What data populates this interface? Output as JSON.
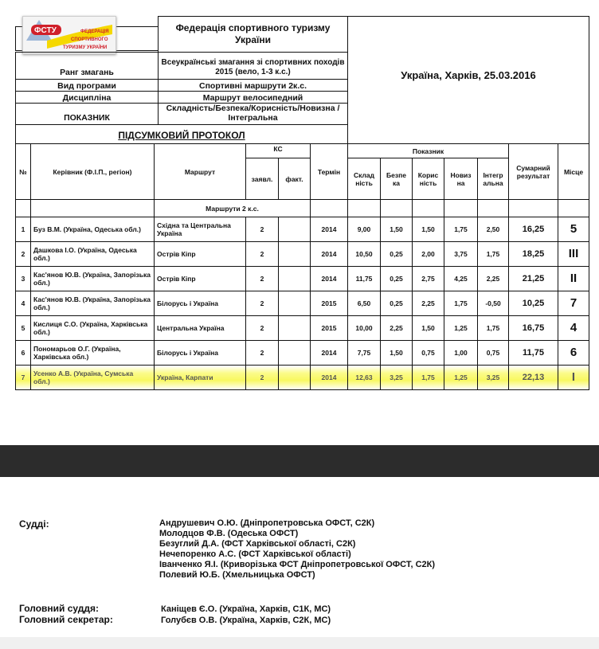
{
  "logo": {
    "abbr": "ФСТУ",
    "text": [
      "ФЕДЕРАЦІЯ",
      "СПОРТИВНОГО",
      "ТУРИЗМУ УКРАЇНИ"
    ],
    "colors": {
      "blue": "#1a4fa0",
      "yellow": "#f5d800",
      "red": "#d0202a"
    }
  },
  "header": {
    "federation": "Федерація спортивного туризму України",
    "location_date": "Україна, Харків, 25.03.2016",
    "rank_label": "Ранг змагань",
    "rank_value": "Всеукраїнські змагання зі спортивних походів 2015 (вело, 1-3 к.с.)",
    "program_label": "Вид програми",
    "program_value": "Спортивні маршрути 2к.с.",
    "discipline_label": "Дисципліна",
    "discipline_value": "Маршрут велосипедний",
    "indicator_label": "ПОКАЗНИК",
    "indicator_value": "Складність/Безпека/Корисність/Новизна /Інтегральна",
    "protocol_title": "ПІДСУМКОВИЙ ПРОТОКОЛ"
  },
  "table": {
    "headers": {
      "num": "№",
      "leader": "Керівник (Ф.І.П., регіон)",
      "route": "Маршрут",
      "ks": "КС",
      "ks_declared": "заявл.",
      "ks_actual": "факт.",
      "term": "Термін",
      "indicator": "Показник",
      "difficulty": "Склад ність",
      "safety": "Безпе ка",
      "usefulness": "Корис ність",
      "novelty": "Новиз на",
      "integral": "Інтегр альна",
      "total": "Сумарний результат",
      "place": "Місце"
    },
    "section": "Маршрути 2 к.с.",
    "rows": [
      {
        "num": "1",
        "leader": "Буз В.М. (Україна, Одеська обл.)",
        "route": "Східна та Центральна Україна",
        "ks": "2",
        "ks_actual": "",
        "term": "2014",
        "difficulty": "9,00",
        "safety": "1,50",
        "usefulness": "1,50",
        "novelty": "1,75",
        "integral": "2,50",
        "total": "16,25",
        "place": "5"
      },
      {
        "num": "2",
        "leader": "Дашкова І.О. (Україна, Одеська обл.)",
        "route": "Острів Кіпр",
        "ks": "2",
        "ks_actual": "",
        "term": "2014",
        "difficulty": "10,50",
        "safety": "0,25",
        "usefulness": "2,00",
        "novelty": "3,75",
        "integral": "1,75",
        "total": "18,25",
        "place": "III"
      },
      {
        "num": "3",
        "leader": "Кас'янов Ю.В. (Україна, Запорізька обл.)",
        "route": "Острів Кіпр",
        "ks": "2",
        "ks_actual": "",
        "term": "2014",
        "difficulty": "11,75",
        "safety": "0,25",
        "usefulness": "2,75",
        "novelty": "4,25",
        "integral": "2,25",
        "total": "21,25",
        "place": "II"
      },
      {
        "num": "4",
        "leader": "Кас'янов Ю.В. (Україна, Запорізька обл.)",
        "route": "Білорусь і Україна",
        "ks": "2",
        "ks_actual": "",
        "term": "2015",
        "difficulty": "6,50",
        "safety": "0,25",
        "usefulness": "2,25",
        "novelty": "1,75",
        "integral": "-0,50",
        "total": "10,25",
        "place": "7"
      },
      {
        "num": "5",
        "leader": "Кислиця С.О. (Україна, Харківська обл.)",
        "route": "Центральна Україна",
        "ks": "2",
        "ks_actual": "",
        "term": "2015",
        "difficulty": "10,00",
        "safety": "2,25",
        "usefulness": "1,50",
        "novelty": "1,25",
        "integral": "1,75",
        "total": "16,75",
        "place": "4"
      },
      {
        "num": "6",
        "leader": "Пономарьов О.Г. (Україна, Харківська обл.)",
        "route": "Білорусь і Україна",
        "ks": "2",
        "ks_actual": "",
        "term": "2014",
        "difficulty": "7,75",
        "safety": "1,50",
        "usefulness": "0,75",
        "novelty": "1,00",
        "integral": "0,75",
        "total": "11,75",
        "place": "6"
      },
      {
        "num": "7",
        "leader": "Усенко А.В. (Україна, Сумська обл.)",
        "route": "Україна, Карпати",
        "ks": "2",
        "ks_actual": "",
        "term": "2014",
        "difficulty": "12,63",
        "safety": "3,25",
        "usefulness": "1,75",
        "novelty": "1,25",
        "integral": "3,25",
        "total": "22,13",
        "place": "I"
      }
    ],
    "highlight_color": "#f8f860"
  },
  "judges": {
    "label": "Судді:",
    "names": [
      "Андрушевич О.Ю. (Дніпропетровська ОФСТ, С2К)",
      "Молодцов Ф.В. (Одеська ОФСТ)",
      "Безуглий Д.А. (ФСТ Харківської області, С2К)",
      "Нечепоренко А.С. (ФСТ Харківської області)",
      "Іванченко Я.І. (Криворізька ФСТ Дніпропетровської ОФСТ, С2К)",
      "Полевий Ю.Б. (Хмельницька ОФСТ)"
    ],
    "chief_label": "Головний суддя:",
    "chief": "Каніщев Є.О. (Україна, Харків, С1К, МС)",
    "secretary_label": "Головний секретар:",
    "secretary": "Голубєв О.В. (Україна, Харків, С2К, МС)"
  }
}
